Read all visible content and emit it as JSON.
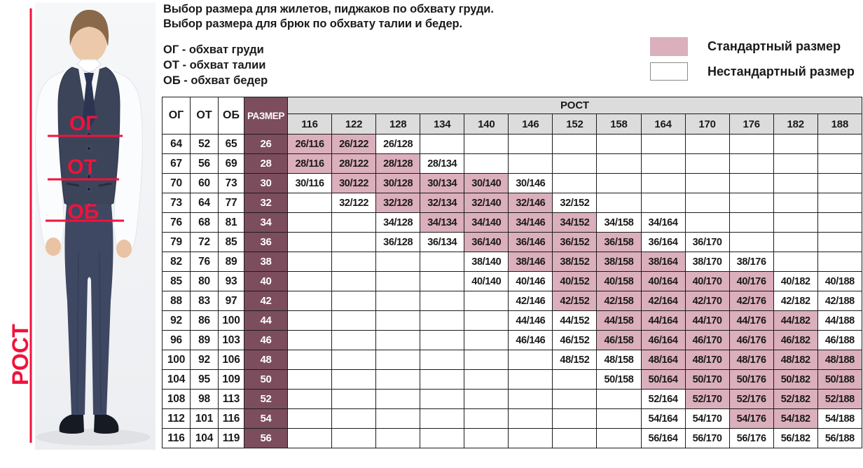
{
  "title": {
    "line1": "Выбор размера для жилетов, пиджаков по обхвату груди.",
    "line2": "Выбор размера для брюк по обхвату талии и бедер."
  },
  "abbreviations": {
    "chest": "ОГ - обхват груди",
    "waist": "ОТ - обхват талии",
    "hips": "ОБ - обхват бедер"
  },
  "legend": {
    "standard_label": "Стандартный размер",
    "standard_color": "#dbafbc",
    "nonstandard_label": "Нестандартный размер",
    "nonstandard_color": "#ffffff"
  },
  "figure": {
    "chest_label": "ОГ",
    "waist_label": "ОТ",
    "hips_label": "ОБ",
    "height_label": "РОСТ",
    "accent_color": "#f0123c"
  },
  "colors": {
    "size_column_bg": "#7c4d5d",
    "standard_cell_bg": "#dbafbc",
    "height_header_bg": "#dcdcdc",
    "grid_border": "#1c1c1c"
  },
  "chart_data": {
    "type": "table",
    "title": "Выбор размера для жилетов, пиджаков по обхвату груди. Выбор размера для брюк по обхвату талии и бедер.",
    "legend": [
      "Стандартный размер",
      "Нестандартный размер"
    ],
    "left_columns": [
      "ОГ",
      "ОТ",
      "ОБ",
      "РАЗМЕР"
    ],
    "height_group_label": "РОСТ",
    "heights": [
      "116",
      "122",
      "128",
      "134",
      "140",
      "146",
      "152",
      "158",
      "164",
      "170",
      "176",
      "182",
      "188"
    ],
    "rows": [
      {
        "og": "64",
        "ot": "52",
        "ob": "65",
        "size": "26",
        "cells": [
          {
            "label": "26/116",
            "standard": true
          },
          {
            "label": "26/122",
            "standard": true
          },
          {
            "label": "26/128",
            "standard": false
          },
          null,
          null,
          null,
          null,
          null,
          null,
          null,
          null,
          null,
          null
        ]
      },
      {
        "og": "67",
        "ot": "56",
        "ob": "69",
        "size": "28",
        "cells": [
          {
            "label": "28/116",
            "standard": true
          },
          {
            "label": "28/122",
            "standard": true
          },
          {
            "label": "28/128",
            "standard": true
          },
          {
            "label": "28/134",
            "standard": false
          },
          null,
          null,
          null,
          null,
          null,
          null,
          null,
          null,
          null
        ]
      },
      {
        "og": "70",
        "ot": "60",
        "ob": "73",
        "size": "30",
        "cells": [
          {
            "label": "30/116",
            "standard": false
          },
          {
            "label": "30/122",
            "standard": true
          },
          {
            "label": "30/128",
            "standard": true
          },
          {
            "label": "30/134",
            "standard": true
          },
          {
            "label": "30/140",
            "standard": true
          },
          {
            "label": "30/146",
            "standard": false
          },
          null,
          null,
          null,
          null,
          null,
          null,
          null
        ]
      },
      {
        "og": "73",
        "ot": "64",
        "ob": "77",
        "size": "32",
        "cells": [
          null,
          {
            "label": "32/122",
            "standard": false
          },
          {
            "label": "32/128",
            "standard": true
          },
          {
            "label": "32/134",
            "standard": true
          },
          {
            "label": "32/140",
            "standard": true
          },
          {
            "label": "32/146",
            "standard": true
          },
          {
            "label": "32/152",
            "standard": false
          },
          null,
          null,
          null,
          null,
          null,
          null
        ]
      },
      {
        "og": "76",
        "ot": "68",
        "ob": "81",
        "size": "34",
        "cells": [
          null,
          null,
          {
            "label": "34/128",
            "standard": false
          },
          {
            "label": "34/134",
            "standard": true
          },
          {
            "label": "34/140",
            "standard": true
          },
          {
            "label": "34/146",
            "standard": true
          },
          {
            "label": "34/152",
            "standard": true
          },
          {
            "label": "34/158",
            "standard": false
          },
          {
            "label": "34/164",
            "standard": false
          },
          null,
          null,
          null,
          null
        ]
      },
      {
        "og": "79",
        "ot": "72",
        "ob": "85",
        "size": "36",
        "cells": [
          null,
          null,
          {
            "label": "36/128",
            "standard": false
          },
          {
            "label": "36/134",
            "standard": false
          },
          {
            "label": "36/140",
            "standard": true
          },
          {
            "label": "36/146",
            "standard": true
          },
          {
            "label": "36/152",
            "standard": true
          },
          {
            "label": "36/158",
            "standard": true
          },
          {
            "label": "36/164",
            "standard": false
          },
          {
            "label": "36/170",
            "standard": false
          },
          null,
          null,
          null
        ]
      },
      {
        "og": "82",
        "ot": "76",
        "ob": "89",
        "size": "38",
        "cells": [
          null,
          null,
          null,
          null,
          {
            "label": "38/140",
            "standard": false
          },
          {
            "label": "38/146",
            "standard": true
          },
          {
            "label": "38/152",
            "standard": true
          },
          {
            "label": "38/158",
            "standard": true
          },
          {
            "label": "38/164",
            "standard": true
          },
          {
            "label": "38/170",
            "standard": false
          },
          {
            "label": "38/176",
            "standard": false
          },
          null,
          null
        ]
      },
      {
        "og": "85",
        "ot": "80",
        "ob": "93",
        "size": "40",
        "cells": [
          null,
          null,
          null,
          null,
          {
            "label": "40/140",
            "standard": false
          },
          {
            "label": "40/146",
            "standard": false
          },
          {
            "label": "40/152",
            "standard": true
          },
          {
            "label": "40/158",
            "standard": true
          },
          {
            "label": "40/164",
            "standard": true
          },
          {
            "label": "40/170",
            "standard": true
          },
          {
            "label": "40/176",
            "standard": true
          },
          {
            "label": "40/182",
            "standard": false
          },
          {
            "label": "40/188",
            "standard": false
          }
        ]
      },
      {
        "og": "88",
        "ot": "83",
        "ob": "97",
        "size": "42",
        "cells": [
          null,
          null,
          null,
          null,
          null,
          {
            "label": "42/146",
            "standard": false
          },
          {
            "label": "42/152",
            "standard": true
          },
          {
            "label": "42/158",
            "standard": true
          },
          {
            "label": "42/164",
            "standard": true
          },
          {
            "label": "42/170",
            "standard": true
          },
          {
            "label": "42/176",
            "standard": true
          },
          {
            "label": "42/182",
            "standard": false
          },
          {
            "label": "42/188",
            "standard": false
          }
        ]
      },
      {
        "og": "92",
        "ot": "86",
        "ob": "100",
        "size": "44",
        "cells": [
          null,
          null,
          null,
          null,
          null,
          {
            "label": "44/146",
            "standard": false
          },
          {
            "label": "44/152",
            "standard": false
          },
          {
            "label": "44/158",
            "standard": true
          },
          {
            "label": "44/164",
            "standard": true
          },
          {
            "label": "44/170",
            "standard": true
          },
          {
            "label": "44/176",
            "standard": true
          },
          {
            "label": "44/182",
            "standard": true
          },
          {
            "label": "44/188",
            "standard": false
          }
        ]
      },
      {
        "og": "96",
        "ot": "89",
        "ob": "103",
        "size": "46",
        "cells": [
          null,
          null,
          null,
          null,
          null,
          {
            "label": "46/146",
            "standard": false
          },
          {
            "label": "46/152",
            "standard": false
          },
          {
            "label": "46/158",
            "standard": true
          },
          {
            "label": "46/164",
            "standard": true
          },
          {
            "label": "46/170",
            "standard": true
          },
          {
            "label": "46/176",
            "standard": true
          },
          {
            "label": "46/182",
            "standard": true
          },
          {
            "label": "46/188",
            "standard": false
          }
        ]
      },
      {
        "og": "100",
        "ot": "92",
        "ob": "106",
        "size": "48",
        "cells": [
          null,
          null,
          null,
          null,
          null,
          null,
          {
            "label": "48/152",
            "standard": false
          },
          {
            "label": "48/158",
            "standard": false
          },
          {
            "label": "48/164",
            "standard": true
          },
          {
            "label": "48/170",
            "standard": true
          },
          {
            "label": "48/176",
            "standard": true
          },
          {
            "label": "48/182",
            "standard": true
          },
          {
            "label": "48/188",
            "standard": true
          }
        ]
      },
      {
        "og": "104",
        "ot": "95",
        "ob": "109",
        "size": "50",
        "cells": [
          null,
          null,
          null,
          null,
          null,
          null,
          null,
          {
            "label": "50/158",
            "standard": false
          },
          {
            "label": "50/164",
            "standard": true
          },
          {
            "label": "50/170",
            "standard": true
          },
          {
            "label": "50/176",
            "standard": true
          },
          {
            "label": "50/182",
            "standard": true
          },
          {
            "label": "50/188",
            "standard": true
          }
        ]
      },
      {
        "og": "108",
        "ot": "98",
        "ob": "113",
        "size": "52",
        "cells": [
          null,
          null,
          null,
          null,
          null,
          null,
          null,
          null,
          {
            "label": "52/164",
            "standard": false
          },
          {
            "label": "52/170",
            "standard": true
          },
          {
            "label": "52/176",
            "standard": true
          },
          {
            "label": "52/182",
            "standard": true
          },
          {
            "label": "52/188",
            "standard": true
          }
        ]
      },
      {
        "og": "112",
        "ot": "101",
        "ob": "116",
        "size": "54",
        "cells": [
          null,
          null,
          null,
          null,
          null,
          null,
          null,
          null,
          {
            "label": "54/164",
            "standard": false
          },
          {
            "label": "54/170",
            "standard": false
          },
          {
            "label": "54/176",
            "standard": true
          },
          {
            "label": "54/182",
            "standard": true
          },
          {
            "label": "54/188",
            "standard": false
          }
        ]
      },
      {
        "og": "116",
        "ot": "104",
        "ob": "119",
        "size": "56",
        "cells": [
          null,
          null,
          null,
          null,
          null,
          null,
          null,
          null,
          {
            "label": "56/164",
            "standard": false
          },
          {
            "label": "56/170",
            "standard": false
          },
          {
            "label": "56/176",
            "standard": false
          },
          {
            "label": "56/182",
            "standard": false
          },
          {
            "label": "56/188",
            "standard": false
          }
        ]
      }
    ]
  }
}
